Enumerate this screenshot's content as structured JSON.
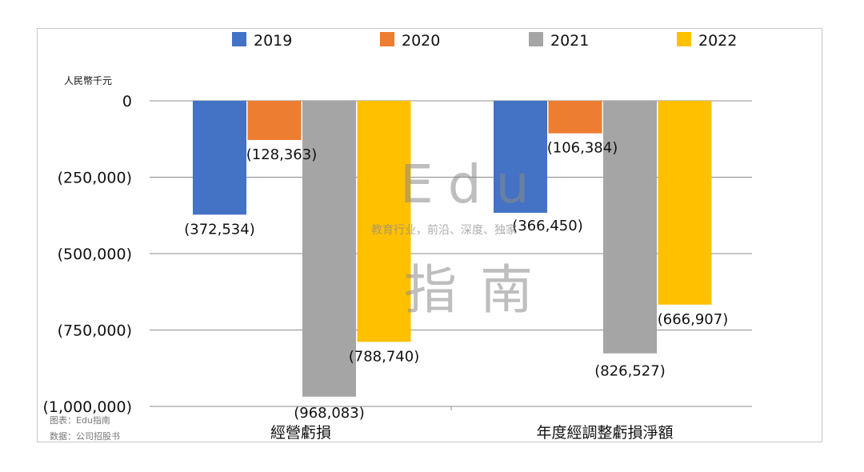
{
  "chart_data": {
    "type": "bar",
    "unit_label": "人民幣千元",
    "categories": [
      "經營虧損",
      "年度經調整虧損淨額"
    ],
    "series": [
      {
        "name": "2019",
        "color": "#4472C4",
        "values": [
          -372534,
          -366450
        ]
      },
      {
        "name": "2020",
        "color": "#ED7D31",
        "values": [
          -128363,
          -106384
        ]
      },
      {
        "name": "2021",
        "color": "#A5A5A5",
        "values": [
          -968083,
          -826527
        ]
      },
      {
        "name": "2022",
        "color": "#FFC000",
        "values": [
          -788740,
          -666907
        ]
      }
    ],
    "data_labels": [
      [
        "(372,534)",
        "(366,450)"
      ],
      [
        "(128,363)",
        "(106,384)"
      ],
      [
        "(968,083)",
        "(826,527)"
      ],
      [
        "(788,740)",
        "(666,907)"
      ]
    ],
    "yticks": [
      {
        "value": 0,
        "label": "0"
      },
      {
        "value": -250000,
        "label": "(250,000)"
      },
      {
        "value": -500000,
        "label": "(500,000)"
      },
      {
        "value": -750000,
        "label": "(750,000)"
      },
      {
        "value": -1000000,
        "label": "(1,000,000)"
      }
    ],
    "ylim": [
      -1000000,
      0
    ],
    "grid": true,
    "legend_position": "top"
  },
  "source_lines": [
    "图表：Edu指南",
    "数据：公司招股书"
  ],
  "watermark": {
    "main": "Edu",
    "cn": "指 南",
    "tagline": "教育行业，前沿、深度、独家"
  }
}
